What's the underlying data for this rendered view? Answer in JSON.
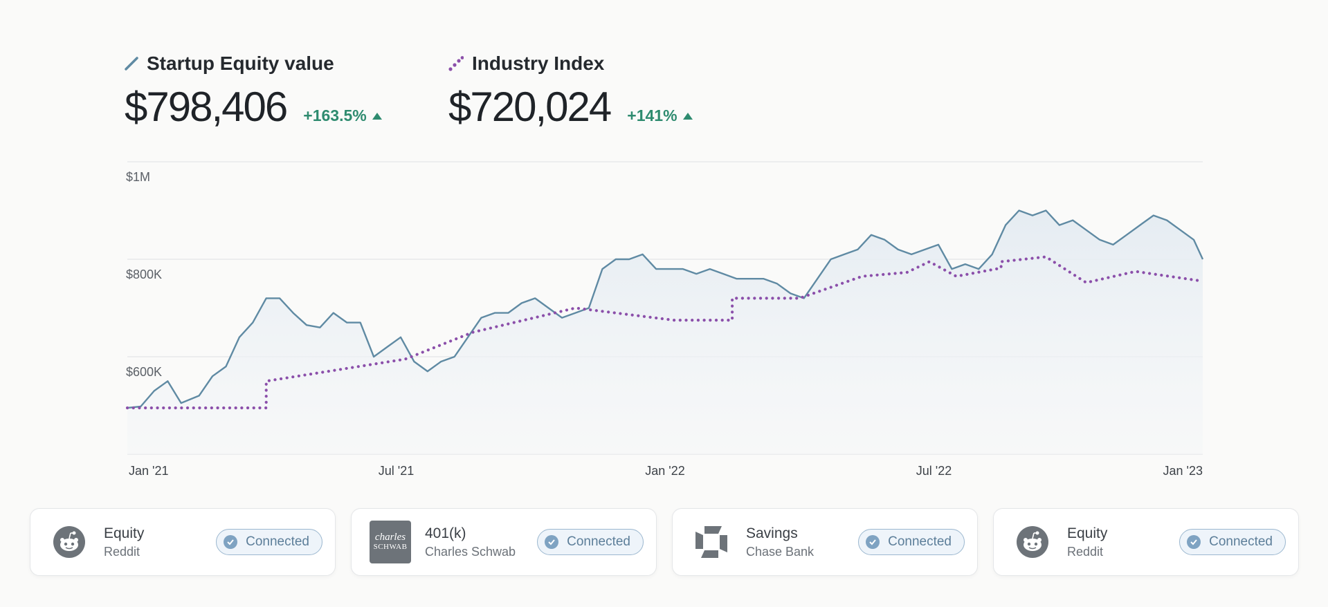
{
  "colors": {
    "equity_line": "#5f8aa3",
    "index_dots": "#8b4faa",
    "positive": "#2e8b6f",
    "grid": "#e3e5e7",
    "fill_top": "#e8eef3"
  },
  "header": {
    "equity": {
      "label": "Startup Equity value",
      "value": "$798,406",
      "change": "+163.5%"
    },
    "index": {
      "label": "Industry Index",
      "value": "$720,024",
      "change": "+141%"
    }
  },
  "chart_data": {
    "type": "line",
    "title": "",
    "xlabel": "",
    "ylabel": "",
    "x_tick_labels": [
      "Jan '21",
      "Jul '21",
      "Jan '22",
      "Jul '22",
      "Jan '23"
    ],
    "y_tick_labels": [
      "$1M",
      "$800K",
      "$600K"
    ],
    "ylim": [
      400000,
      1000000
    ],
    "xlim": [
      0,
      24
    ],
    "series": [
      {
        "name": "Startup Equity value",
        "style": "solid-area",
        "x": [
          0,
          0.3,
          0.6,
          0.9,
          1.2,
          1.6,
          1.9,
          2.2,
          2.5,
          2.8,
          3.1,
          3.4,
          3.7,
          4.0,
          4.3,
          4.6,
          4.9,
          5.2,
          5.5,
          5.8,
          6.1,
          6.4,
          6.7,
          7.0,
          7.3,
          7.6,
          7.9,
          8.2,
          8.5,
          8.8,
          9.1,
          9.4,
          9.7,
          10.0,
          10.3,
          10.6,
          10.9,
          11.2,
          11.5,
          11.8,
          12.1,
          12.4,
          12.7,
          13.0,
          13.3,
          13.6,
          13.9,
          14.2,
          14.5,
          14.8,
          15.1,
          15.4,
          15.7,
          16.0,
          16.3,
          16.6,
          16.9,
          17.2,
          17.5,
          17.8,
          18.1,
          18.4,
          18.7,
          19.0,
          19.3,
          19.6,
          19.9,
          20.2,
          20.5,
          20.8,
          21.1,
          21.4,
          21.7,
          22.0,
          22.3,
          22.6,
          22.9,
          23.2,
          23.5,
          23.8,
          24.0
        ],
        "values": [
          495000,
          498000,
          530000,
          550000,
          505000,
          520000,
          560000,
          580000,
          640000,
          670000,
          720000,
          720000,
          690000,
          665000,
          660000,
          690000,
          670000,
          670000,
          600000,
          620000,
          640000,
          590000,
          570000,
          590000,
          600000,
          640000,
          680000,
          690000,
          690000,
          710000,
          720000,
          700000,
          680000,
          690000,
          700000,
          780000,
          800000,
          800000,
          810000,
          780000,
          780000,
          780000,
          770000,
          780000,
          770000,
          760000,
          760000,
          760000,
          750000,
          730000,
          720000,
          760000,
          800000,
          810000,
          820000,
          850000,
          840000,
          820000,
          810000,
          820000,
          830000,
          780000,
          790000,
          780000,
          810000,
          870000,
          900000,
          890000,
          900000,
          870000,
          880000,
          860000,
          840000,
          830000,
          850000,
          870000,
          890000,
          880000,
          860000,
          840000,
          800000
        ]
      },
      {
        "name": "Industry Index",
        "style": "dotted",
        "x": [
          0,
          3.1,
          3.1,
          6.2,
          7.7,
          10.0,
          12.2,
          13.5,
          13.5,
          15.0,
          16.4,
          17.4,
          17.9,
          18.5,
          19.5,
          19.5,
          20.5,
          21.4,
          22.5,
          24.0
        ],
        "values": [
          495000,
          495000,
          550000,
          595000,
          650000,
          700000,
          675000,
          675000,
          720000,
          720000,
          765000,
          773000,
          795000,
          765000,
          782000,
          795000,
          805000,
          752000,
          775000,
          755000
        ]
      }
    ]
  },
  "accounts": [
    {
      "title": "Equity",
      "subtitle": "Reddit",
      "status": "Connected",
      "logo": "reddit-icon"
    },
    {
      "title": "401(k)",
      "subtitle": "Charles Schwab",
      "status": "Connected",
      "logo": "charles-schwab-logo",
      "logo_text": [
        "charles",
        "SCHWAB"
      ]
    },
    {
      "title": "Savings",
      "subtitle": "Chase Bank",
      "status": "Connected",
      "logo": "chase-icon"
    },
    {
      "title": "Equity",
      "subtitle": "Reddit",
      "status": "Connected",
      "logo": "reddit-icon"
    }
  ]
}
